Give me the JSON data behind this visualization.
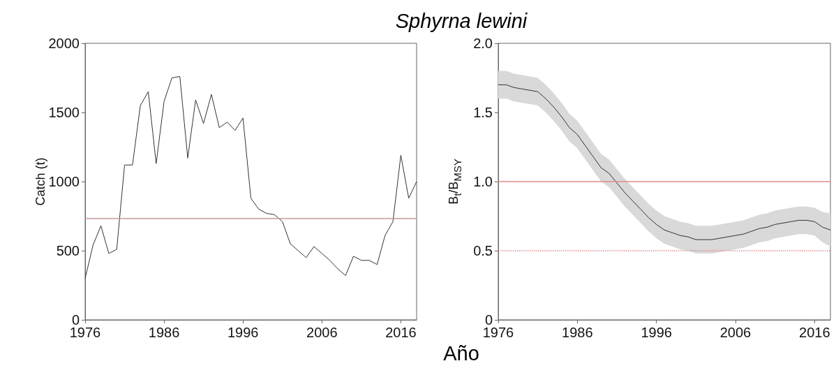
{
  "chart_data": [
    {
      "type": "line",
      "title": "Sphyrna lewini",
      "xlabel": "Año",
      "ylabel": "Catch (t)",
      "x": [
        1976,
        1977,
        1978,
        1979,
        1980,
        1981,
        1982,
        1983,
        1984,
        1985,
        1986,
        1987,
        1988,
        1989,
        1990,
        1991,
        1992,
        1993,
        1994,
        1995,
        1996,
        1997,
        1998,
        1999,
        2000,
        2001,
        2002,
        2003,
        2004,
        2005,
        2006,
        2007,
        2008,
        2009,
        2010,
        2011,
        2012,
        2013,
        2014,
        2015,
        2016,
        2017,
        2018
      ],
      "series": [
        {
          "color": "#333333",
          "values": [
            300,
            540,
            680,
            480,
            510,
            1120,
            1120,
            1550,
            1650,
            1130,
            1580,
            1750,
            1760,
            1170,
            1590,
            1420,
            1630,
            1390,
            1430,
            1370,
            1460,
            880,
            800,
            770,
            760,
            710,
            550,
            500,
            450,
            530,
            480,
            430,
            370,
            320,
            460,
            430,
            430,
            400,
            610,
            710,
            1190,
            880,
            1000
          ]
        }
      ],
      "xlim": [
        1976,
        2018
      ],
      "xticks": [
        1976,
        1986,
        1996,
        2006,
        2016
      ],
      "ylim": [
        0,
        2000
      ],
      "yticks": [
        0,
        500,
        1000,
        1500,
        2000
      ],
      "marker": "none",
      "ref_lines": [
        {
          "axis": "y",
          "value": 735,
          "color": "#c49a9a",
          "line_style": "solid"
        }
      ]
    },
    {
      "type": "line",
      "ylabel": "B$_{t}$/B$_{MSY}$",
      "x": [
        1976,
        1977,
        1978,
        1979,
        1980,
        1981,
        1982,
        1983,
        1984,
        1985,
        1986,
        1987,
        1988,
        1989,
        1990,
        1991,
        1992,
        1993,
        1994,
        1995,
        1996,
        1997,
        1998,
        1999,
        2000,
        2001,
        2002,
        2003,
        2004,
        2005,
        2006,
        2007,
        2008,
        2009,
        2010,
        2011,
        2012,
        2013,
        2014,
        2015,
        2016,
        2017,
        2018
      ],
      "series": [
        {
          "color": "#333333",
          "values": [
            1.7,
            1.7,
            1.68,
            1.67,
            1.66,
            1.65,
            1.6,
            1.54,
            1.47,
            1.39,
            1.34,
            1.26,
            1.18,
            1.1,
            1.06,
            0.99,
            0.92,
            0.86,
            0.8,
            0.74,
            0.69,
            0.65,
            0.63,
            0.61,
            0.6,
            0.58,
            0.58,
            0.58,
            0.59,
            0.6,
            0.61,
            0.62,
            0.64,
            0.66,
            0.67,
            0.69,
            0.7,
            0.71,
            0.72,
            0.72,
            0.71,
            0.67,
            0.65
          ],
          "lower": [
            1.6,
            1.6,
            1.58,
            1.57,
            1.56,
            1.55,
            1.5,
            1.44,
            1.37,
            1.29,
            1.24,
            1.16,
            1.08,
            1.0,
            0.96,
            0.89,
            0.82,
            0.76,
            0.7,
            0.64,
            0.59,
            0.55,
            0.53,
            0.51,
            0.5,
            0.48,
            0.48,
            0.48,
            0.49,
            0.5,
            0.51,
            0.52,
            0.54,
            0.56,
            0.57,
            0.59,
            0.6,
            0.61,
            0.62,
            0.62,
            0.61,
            0.56,
            0.53
          ],
          "upper": [
            1.8,
            1.8,
            1.78,
            1.77,
            1.76,
            1.75,
            1.7,
            1.64,
            1.57,
            1.49,
            1.44,
            1.36,
            1.28,
            1.2,
            1.16,
            1.09,
            1.02,
            0.96,
            0.9,
            0.84,
            0.79,
            0.75,
            0.73,
            0.71,
            0.7,
            0.68,
            0.68,
            0.68,
            0.69,
            0.7,
            0.71,
            0.72,
            0.74,
            0.76,
            0.77,
            0.79,
            0.8,
            0.81,
            0.82,
            0.82,
            0.81,
            0.78,
            0.77
          ]
        }
      ],
      "xlim": [
        1976,
        2018
      ],
      "xticks": [
        1976,
        1986,
        1996,
        2006,
        2016
      ],
      "ylim": [
        0,
        2.0
      ],
      "yticks": [
        {
          "value": 0,
          "label": "0"
        },
        0.5,
        {
          "value": 1,
          "label": "1.0"
        },
        1.5,
        {
          "value": 2,
          "label": "2.0"
        }
      ],
      "marker": "none",
      "ref_lines": [
        {
          "axis": "y",
          "value": 1.0,
          "color": "#e08a8a",
          "line_style": "solid"
        },
        {
          "axis": "y",
          "value": 0.5,
          "color": "#e08a8a",
          "line_style": "dotted"
        }
      ]
    }
  ]
}
